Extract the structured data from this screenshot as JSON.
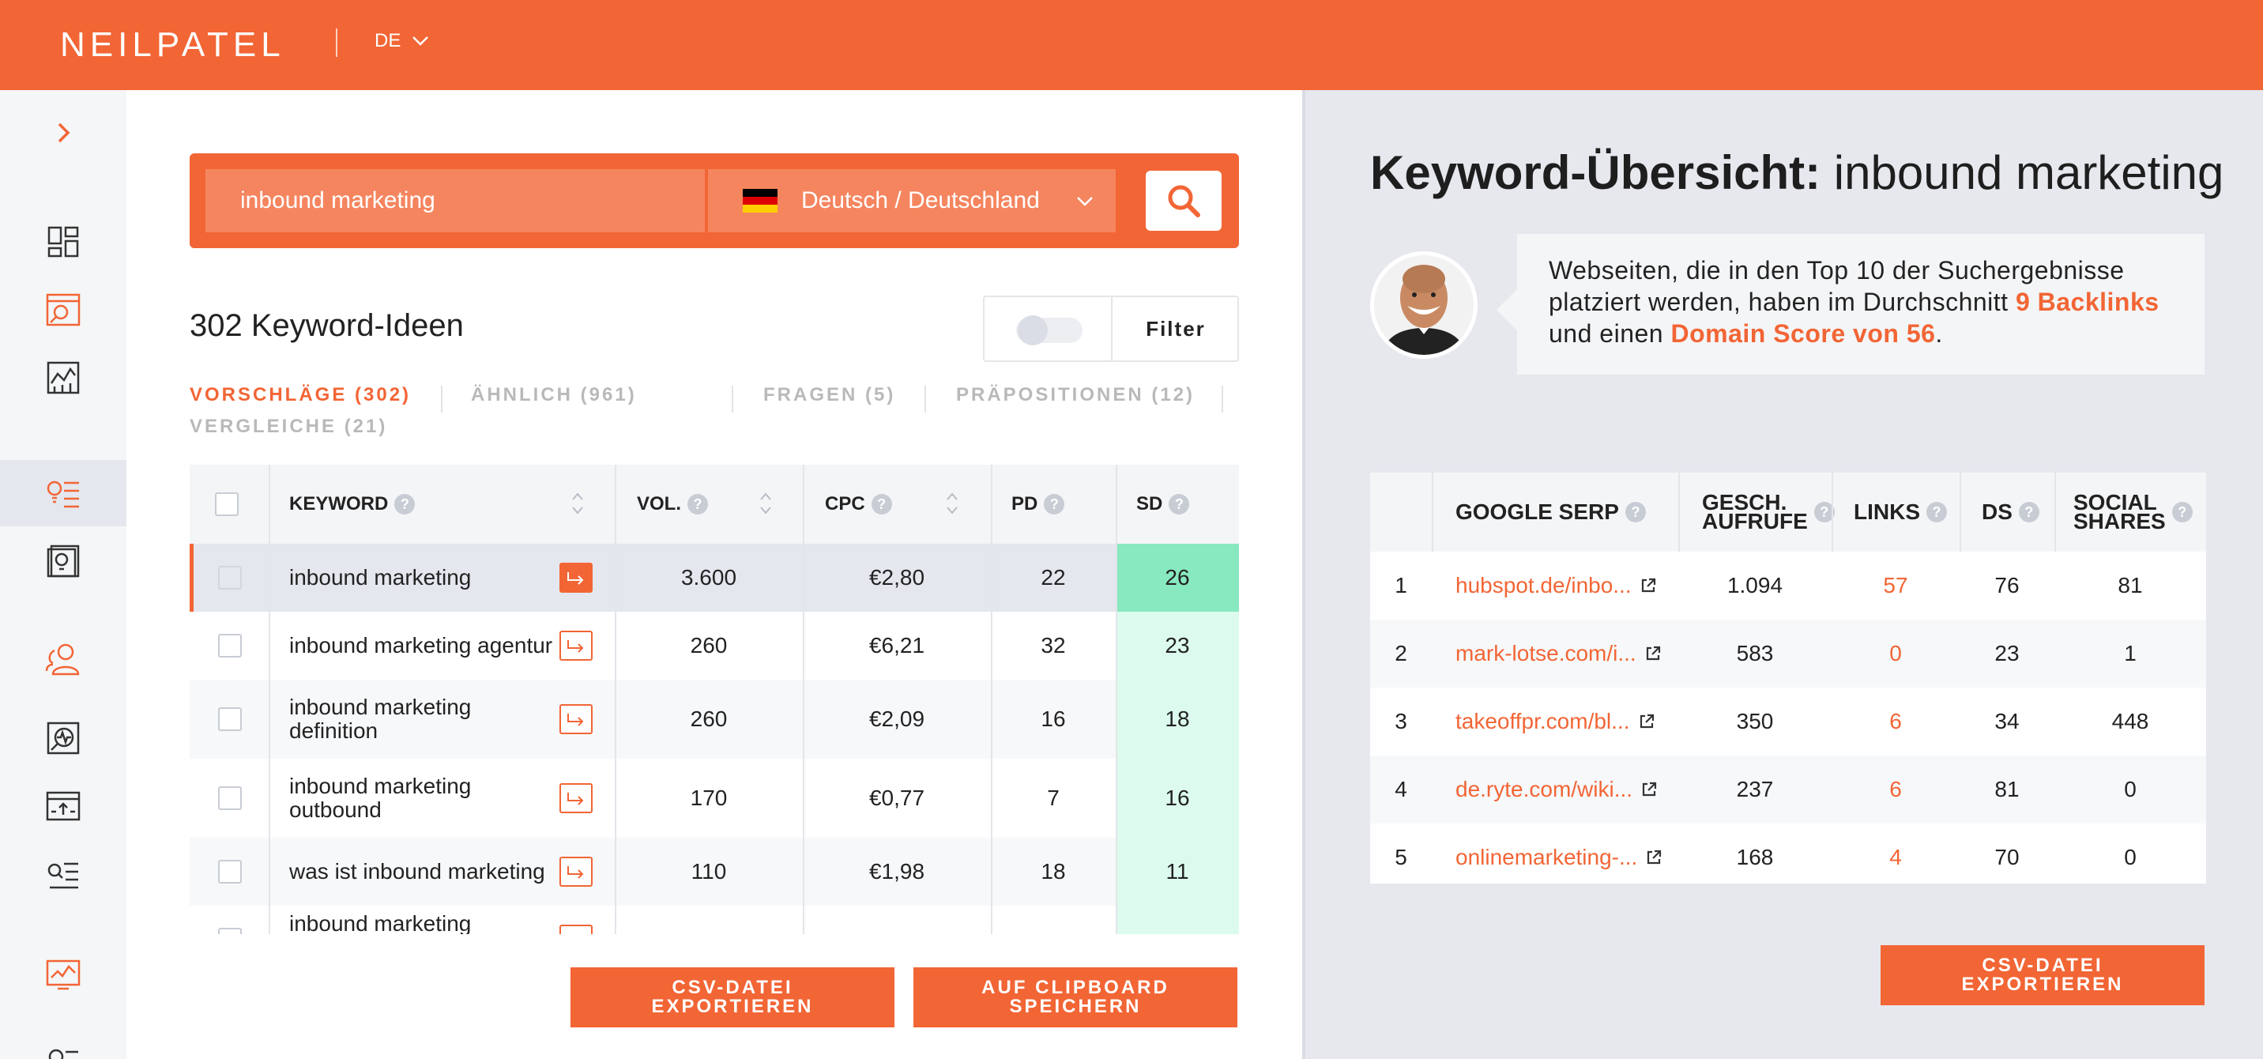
{
  "brand": {
    "logo": "NEILPATEL",
    "language": "DE",
    "accent": "#f26535"
  },
  "sidebar": {
    "toggle_icon": "chevron-right-icon",
    "items": [
      {
        "name": "dashboard",
        "icon": "dashboard-icon"
      },
      {
        "name": "site-audit",
        "icon": "site-audit-icon"
      },
      {
        "name": "traffic-analyzer",
        "icon": "traffic-chart-icon"
      },
      {
        "name": "keyword-ideas",
        "icon": "keyword-ideas-icon",
        "active": true
      },
      {
        "name": "content-ideas",
        "icon": "content-ideas-icon"
      },
      {
        "name": "backlinks",
        "icon": "users-icon"
      },
      {
        "name": "rank-tracking",
        "icon": "rank-tracking-icon"
      },
      {
        "name": "upload",
        "icon": "upload-icon"
      },
      {
        "name": "keyword-list",
        "icon": "keyword-list-icon"
      },
      {
        "name": "reports",
        "icon": "monitor-chart-icon"
      }
    ]
  },
  "search": {
    "query": "inbound marketing",
    "location": "Deutsch / Deutschland",
    "flag_colors": [
      "#000000",
      "#dd0000",
      "#ffce00"
    ]
  },
  "results": {
    "count_label": "302 Keyword-Ideen",
    "filter_label": "Filter"
  },
  "tabs": [
    {
      "label": "VORSCHLÄGE (302)",
      "active": true
    },
    {
      "label": "ÄHNLICH (961)"
    },
    {
      "label": "FRAGEN (5)"
    },
    {
      "label": "PRÄPOSITIONEN (12)"
    },
    {
      "label": "VERGLEICHE (21)"
    }
  ],
  "keyword_table": {
    "headers": {
      "keyword": "KEYWORD",
      "vol": "VOL.",
      "cpc": "CPC",
      "pd": "PD",
      "sd": "SD"
    },
    "rows": [
      {
        "keyword": "inbound marketing",
        "vol": "3.600",
        "cpc": "€2,80",
        "pd": "22",
        "sd": "26"
      },
      {
        "keyword": "inbound marketing agentur",
        "vol": "260",
        "cpc": "€6,21",
        "pd": "32",
        "sd": "23"
      },
      {
        "keyword": "inbound marketing definition",
        "vol": "260",
        "cpc": "€2,09",
        "pd": "16",
        "sd": "18"
      },
      {
        "keyword": "inbound marketing outbound",
        "vol": "170",
        "cpc": "€0,77",
        "pd": "7",
        "sd": "16"
      },
      {
        "keyword": "was ist inbound marketing",
        "vol": "110",
        "cpc": "€1,98",
        "pd": "18",
        "sd": "11"
      },
      {
        "keyword": "inbound marketing",
        "vol": "",
        "cpc": "",
        "pd": "",
        "sd": ""
      }
    ],
    "sd_colors": {
      "highlight": "#88e8bf",
      "normal": "#dcfbee"
    }
  },
  "left_buttons": {
    "csv_line1": "CSV-DATEI",
    "csv_line2": "EXPORTIEREN",
    "clip_line1": "AUF CLIPBOARD",
    "clip_line2": "SPEICHERN"
  },
  "overview": {
    "title_bold": "Keyword-Übersicht:",
    "title_rest": "inbound marketing",
    "bubble": {
      "t1": "Webseiten, die in den Top 10 der Suchergebnisse platziert werden, haben im Durchschnitt",
      "h1": "9 Backlinks",
      "t2": "und einen",
      "h2": "Domain Score von 56",
      "t3": "."
    }
  },
  "serp_table": {
    "headers": {
      "serp": "GOOGLE SERP",
      "visits_1": "GESCH.",
      "visits_2": "AUFRUFE",
      "links": "LINKS",
      "ds": "DS",
      "shares_1": "SOCIAL",
      "shares_2": "SHARES"
    },
    "rows": [
      {
        "rank": "1",
        "url": "hubspot.de/inbo...",
        "visits": "1.094",
        "links": "57",
        "ds": "76",
        "shares": "81"
      },
      {
        "rank": "2",
        "url": "mark-lotse.com/i...",
        "visits": "583",
        "links": "0",
        "ds": "23",
        "shares": "1"
      },
      {
        "rank": "3",
        "url": "takeoffpr.com/bl...",
        "visits": "350",
        "links": "6",
        "ds": "34",
        "shares": "448"
      },
      {
        "rank": "4",
        "url": "de.ryte.com/wiki...",
        "visits": "237",
        "links": "6",
        "ds": "81",
        "shares": "0"
      },
      {
        "rank": "5",
        "url": "onlinemarketing-...",
        "visits": "168",
        "links": "4",
        "ds": "70",
        "shares": "0"
      }
    ]
  },
  "right_button": {
    "line1": "CSV-DATEI",
    "line2": "EXPORTIEREN"
  }
}
